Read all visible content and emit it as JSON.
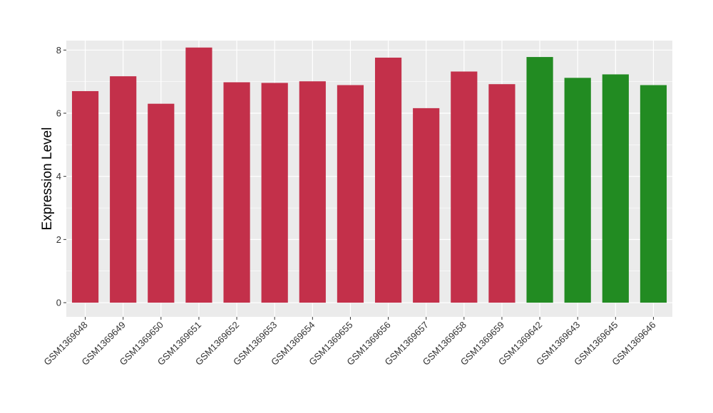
{
  "chart_data": {
    "type": "bar",
    "ylabel": "Expression Level",
    "xlabel": "",
    "ylim": [
      -0.45,
      8.3
    ],
    "yticks": [
      0,
      2,
      4,
      6,
      8
    ],
    "grid": true,
    "categories": [
      "GSM1369648",
      "GSM1369649",
      "GSM1369650",
      "GSM1369651",
      "GSM1369652",
      "GSM1369653",
      "GSM1369654",
      "GSM1369655",
      "GSM1369656",
      "GSM1369657",
      "GSM1369658",
      "GSM1369659",
      "GSM1369642",
      "GSM1369643",
      "GSM1369645",
      "GSM1369646"
    ],
    "values": [
      6.7,
      7.17,
      6.3,
      8.08,
      6.98,
      6.96,
      7.01,
      6.89,
      7.76,
      6.16,
      7.32,
      6.92,
      7.78,
      7.12,
      7.23,
      6.89
    ],
    "bar_colors": [
      "#c3304a",
      "#c3304a",
      "#c3304a",
      "#c3304a",
      "#c3304a",
      "#c3304a",
      "#c3304a",
      "#c3304a",
      "#c3304a",
      "#c3304a",
      "#c3304a",
      "#c3304a",
      "#228b22",
      "#228b22",
      "#228b22",
      "#228b22"
    ]
  },
  "colors": {
    "panel_bg": "#ebebeb",
    "grid_major": "#ffffff",
    "tick": "#333333"
  }
}
